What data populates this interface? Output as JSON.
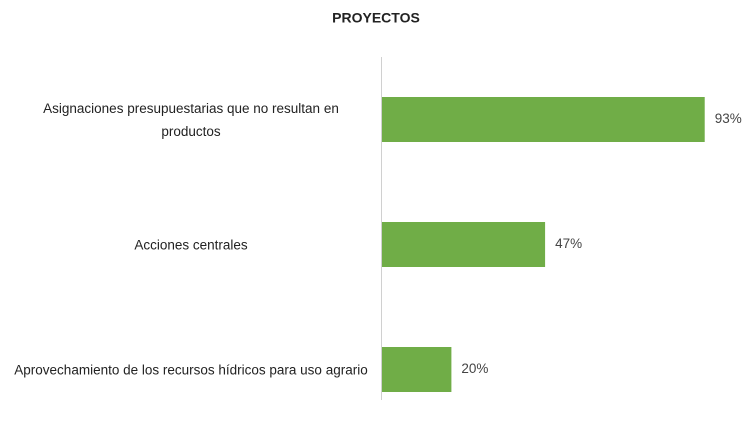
{
  "chart_data": {
    "type": "bar",
    "orientation": "horizontal",
    "title": "PROYECTOS",
    "categories": [
      "Asignaciones presupuestarias que no resultan en productos",
      "Acciones centrales",
      "Aprovechamiento de los recursos hídricos para uso agrario"
    ],
    "values": [
      93,
      47,
      20
    ],
    "value_labels": [
      "93%",
      "47%",
      "20%"
    ],
    "color": "#70ad47"
  }
}
